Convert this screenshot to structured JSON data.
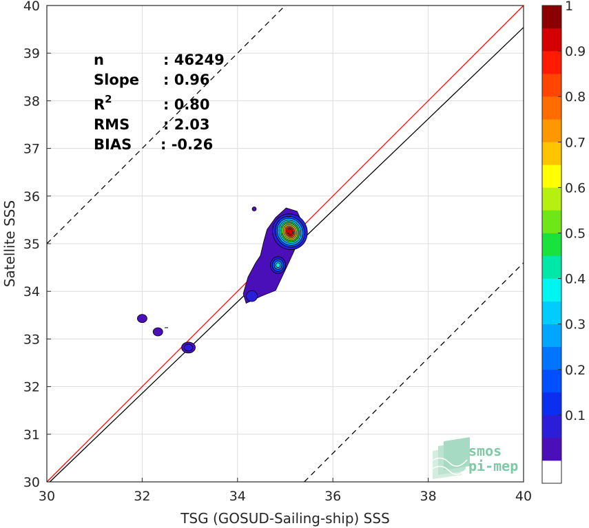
{
  "chart_data": {
    "type": "heatmap",
    "xlabel": "TSG (GOSUD-Sailing-ship) SSS",
    "ylabel": "Satellite SSS",
    "xlim": [
      30,
      40
    ],
    "ylim": [
      30,
      40
    ],
    "xticks": [
      30,
      32,
      34,
      36,
      38,
      40
    ],
    "yticks": [
      30,
      31,
      32,
      33,
      34,
      35,
      36,
      37,
      38,
      39,
      40
    ],
    "grid": true,
    "stats": [
      {
        "label": "n",
        "value": ": 46249"
      },
      {
        "label": "Slope",
        "value": ": 0.96"
      },
      {
        "label": "R",
        "sup": "2",
        "value": ": 0.80"
      },
      {
        "label": "RMS",
        "value": ": 2.03"
      },
      {
        "label": "BIAS",
        "value": ": -0.26"
      }
    ],
    "lines": [
      {
        "kind": "identity",
        "color": "#ff0000",
        "slope": 1,
        "intercept": 0
      },
      {
        "kind": "regression",
        "color": "#000000",
        "slope": 0.96,
        "intercept": 1.14
      },
      {
        "kind": "upper-bound",
        "color": "#000000",
        "dash": true,
        "slope": 1,
        "intercept": 5
      },
      {
        "kind": "lower-bound",
        "color": "#000000",
        "dash": true,
        "slope": 1,
        "intercept": -5.4
      }
    ],
    "density_levels": [
      {
        "level": 0.05,
        "color": "#4a0fb8"
      },
      {
        "level": 0.1,
        "color": "#2c1ed8"
      },
      {
        "level": 0.15,
        "color": "#0a2ff0"
      },
      {
        "level": 0.2,
        "color": "#0050ff"
      },
      {
        "level": 0.25,
        "color": "#0075ff"
      },
      {
        "level": 0.3,
        "color": "#00a6ff"
      },
      {
        "level": 0.35,
        "color": "#00ccff"
      },
      {
        "level": 0.4,
        "color": "#00f5f0"
      },
      {
        "level": 0.45,
        "color": "#00e8a8"
      },
      {
        "level": 0.5,
        "color": "#17e33c"
      },
      {
        "level": 0.55,
        "color": "#6ee617"
      },
      {
        "level": 0.6,
        "color": "#b5f00f"
      },
      {
        "level": 0.65,
        "color": "#ffff00"
      },
      {
        "level": 0.7,
        "color": "#ffc400"
      },
      {
        "level": 0.75,
        "color": "#ff9800"
      },
      {
        "level": 0.8,
        "color": "#ff6d00"
      },
      {
        "level": 0.85,
        "color": "#ff4500"
      },
      {
        "level": 0.9,
        "color": "#ff1a00"
      },
      {
        "level": 0.95,
        "color": "#d40000"
      },
      {
        "level": 1.0,
        "color": "#8b0000"
      }
    ],
    "colorbar": {
      "ticks": [
        0.1,
        0.2,
        0.3,
        0.4,
        0.5,
        0.6,
        0.7,
        0.8,
        0.9,
        1
      ],
      "labels": [
        "0.1",
        "0.2",
        "0.3",
        "0.4",
        "0.5",
        "0.6",
        "0.7",
        "0.8",
        "0.9",
        "1"
      ]
    },
    "clusters": [
      {
        "name": "main-core",
        "x": 35.1,
        "y": 35.25,
        "peak": 1.0
      },
      {
        "name": "secondary",
        "x": 34.85,
        "y": 34.55,
        "peak": 0.4
      },
      {
        "name": "tail",
        "x": 34.3,
        "y": 33.9,
        "peak": 0.15
      },
      {
        "name": "blob-33",
        "x": 32.97,
        "y": 32.82,
        "peak": 0.1
      },
      {
        "name": "blob-32-3",
        "x": 32.33,
        "y": 33.15,
        "peak": 0.05
      },
      {
        "name": "blob-32",
        "x": 32.0,
        "y": 33.43,
        "peak": 0.05
      },
      {
        "name": "speck",
        "x": 34.35,
        "y": 35.73,
        "peak": 0.05
      }
    ]
  },
  "logo": {
    "line1": "smos",
    "line2": "pi-mep"
  }
}
